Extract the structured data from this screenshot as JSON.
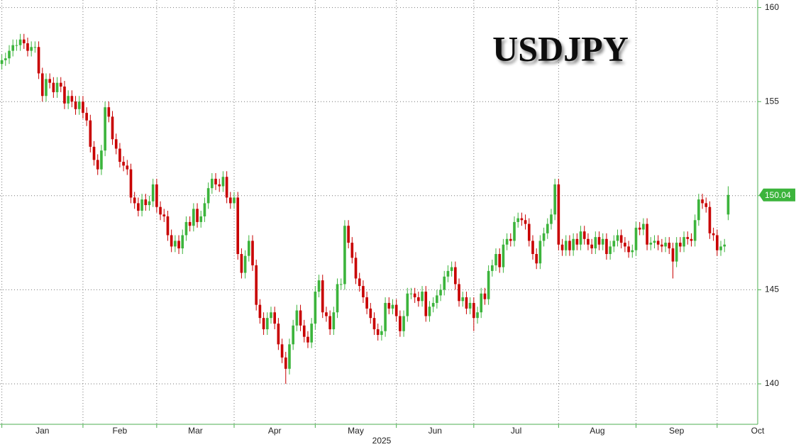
{
  "chart_data": {
    "type": "candlestick",
    "title": "USDJPY",
    "xlabel": "2025",
    "up_color": "#3cb43c",
    "down_color": "#c80000",
    "grid": true,
    "y_axis_side": "right",
    "ylim": [
      137.85,
      160.4
    ],
    "yticks": [
      140,
      145,
      150,
      155,
      160
    ],
    "xlim": [
      -0.5,
      205
    ],
    "xticks": [
      {
        "value": 0,
        "label": "Jan"
      },
      {
        "value": 22,
        "label": "Feb"
      },
      {
        "value": 42,
        "label": "Mar"
      },
      {
        "value": 63,
        "label": "Apr"
      },
      {
        "value": 85,
        "label": "May"
      },
      {
        "value": 107,
        "label": "Jun"
      },
      {
        "value": 128,
        "label": "Jul"
      },
      {
        "value": 151,
        "label": "Aug"
      },
      {
        "value": 172,
        "label": "Sep"
      },
      {
        "value": 194,
        "label": "Oct"
      }
    ],
    "open": [
      157.0,
      157.2,
      157.3,
      157.7,
      158.0,
      158.0,
      158.3,
      158.1,
      157.7,
      157.9,
      157.9,
      156.5,
      155.3,
      156.2,
      156.0,
      155.5,
      156.0,
      155.8,
      154.9,
      155.3,
      155.0,
      154.6,
      155.0,
      154.4,
      154.0,
      152.6,
      151.9,
      151.4,
      152.4,
      154.7,
      154.2,
      153.0,
      152.5,
      151.8,
      151.6,
      151.4,
      149.9,
      149.6,
      149.2,
      149.8,
      149.5,
      149.7,
      150.6,
      149.4,
      149.0,
      148.9,
      147.9,
      147.3,
      147.6,
      147.2,
      147.9,
      148.6,
      148.4,
      149.3,
      148.6,
      148.9,
      149.6,
      150.4,
      150.9,
      150.6,
      150.5,
      151.0,
      149.9,
      149.6,
      149.9,
      146.9,
      145.9,
      146.8,
      147.6,
      146.3,
      144.2,
      143.5,
      142.9,
      143.5,
      143.8,
      143.2,
      142.1,
      141.4,
      140.8,
      142.1,
      143.1,
      143.9,
      143.1,
      142.5,
      142.2,
      143.2,
      144.9,
      145.5,
      143.8,
      143.6,
      142.9,
      143.8,
      145.3,
      145.3,
      148.4,
      147.5,
      146.7,
      145.6,
      145.2,
      144.6,
      144.0,
      143.5,
      142.9,
      142.6,
      142.8,
      144.3,
      144.0,
      144.2,
      143.6,
      142.8,
      143.6,
      144.8,
      144.8,
      144.6,
      144.4,
      144.9,
      143.6,
      144.1,
      144.3,
      144.7,
      145.0,
      145.7,
      146.0,
      146.2,
      145.3,
      144.4,
      144.6,
      144.0,
      144.3,
      143.5,
      143.8,
      144.8,
      144.5,
      146.0,
      146.3,
      146.9,
      146.2,
      147.4,
      147.7,
      147.6,
      148.6,
      148.8,
      148.7,
      148.5,
      147.6,
      146.9,
      146.4,
      147.6,
      148.0,
      148.5,
      149.0,
      150.6,
      147.4,
      147.1,
      147.6,
      147.1,
      147.7,
      147.4,
      148.1,
      147.7,
      147.4,
      147.2,
      147.8,
      147.4,
      147.7,
      146.9,
      147.3,
      147.6,
      147.9,
      147.5,
      147.3,
      147.0,
      147.1,
      148.3,
      148.2,
      148.5,
      147.4,
      147.5,
      147.6,
      147.4,
      147.3,
      147.5,
      147.2,
      146.5,
      147.5,
      147.3,
      147.8,
      147.7,
      147.6,
      148.7,
      149.8,
      149.6,
      149.4,
      148.0,
      147.9,
      147.1,
      147.3,
      149.0
    ],
    "high": [
      157.5,
      157.6,
      158.0,
      158.3,
      158.3,
      158.6,
      158.6,
      158.4,
      158.2,
      158.2,
      158.2,
      156.8,
      156.5,
      156.5,
      156.3,
      156.3,
      156.3,
      156.1,
      155.6,
      155.6,
      155.3,
      155.3,
      155.3,
      154.7,
      154.3,
      152.9,
      152.2,
      152.7,
      155.0,
      155.0,
      154.5,
      153.3,
      152.8,
      152.1,
      151.9,
      151.7,
      150.2,
      149.9,
      150.1,
      150.1,
      150.0,
      150.9,
      150.9,
      149.7,
      149.3,
      149.2,
      148.2,
      147.9,
      147.9,
      148.2,
      148.9,
      148.9,
      149.6,
      149.6,
      149.2,
      149.9,
      150.7,
      151.2,
      151.2,
      150.9,
      151.3,
      151.3,
      150.2,
      150.2,
      150.2,
      147.2,
      147.1,
      147.9,
      147.9,
      146.6,
      144.5,
      143.8,
      143.8,
      144.1,
      144.1,
      143.5,
      142.4,
      141.7,
      142.4,
      143.4,
      144.2,
      144.2,
      143.4,
      142.8,
      143.5,
      145.2,
      145.8,
      145.8,
      144.1,
      143.9,
      144.1,
      145.6,
      145.6,
      148.7,
      148.7,
      147.8,
      147.0,
      145.9,
      145.5,
      144.9,
      144.3,
      143.8,
      143.2,
      143.1,
      144.6,
      144.6,
      144.5,
      144.5,
      143.9,
      143.9,
      145.1,
      145.1,
      145.1,
      144.9,
      145.2,
      145.2,
      144.4,
      144.6,
      145.0,
      145.3,
      146.0,
      146.3,
      146.5,
      146.5,
      145.6,
      144.9,
      144.9,
      144.6,
      144.6,
      144.1,
      145.1,
      145.1,
      146.3,
      146.6,
      147.2,
      147.2,
      147.7,
      148.0,
      148.0,
      148.9,
      149.1,
      149.1,
      149.0,
      148.8,
      147.9,
      147.2,
      147.9,
      148.3,
      148.8,
      149.3,
      150.9,
      150.9,
      147.7,
      147.9,
      147.9,
      148.0,
      148.0,
      148.4,
      148.4,
      148.0,
      147.7,
      148.1,
      148.1,
      148.0,
      148.0,
      147.6,
      147.9,
      148.2,
      148.2,
      147.8,
      147.6,
      147.4,
      148.6,
      148.6,
      148.8,
      148.8,
      147.8,
      147.9,
      147.9,
      147.7,
      147.8,
      147.8,
      147.5,
      147.8,
      147.8,
      148.1,
      148.1,
      148.0,
      149.0,
      150.1,
      150.1,
      149.9,
      149.7,
      148.3,
      148.2,
      147.6,
      147.7,
      150.5
    ],
    "low": [
      156.7,
      156.9,
      157.0,
      157.4,
      157.7,
      157.7,
      157.8,
      157.4,
      157.4,
      157.6,
      156.2,
      155.0,
      155.0,
      155.7,
      155.2,
      155.2,
      155.5,
      154.6,
      154.6,
      154.7,
      154.3,
      154.3,
      154.1,
      153.7,
      152.3,
      151.6,
      151.1,
      151.1,
      152.1,
      153.9,
      152.7,
      152.2,
      151.5,
      151.3,
      151.1,
      149.6,
      149.3,
      148.9,
      148.9,
      149.2,
      149.2,
      149.4,
      149.1,
      148.7,
      148.6,
      147.6,
      147.0,
      147.0,
      146.9,
      146.9,
      147.6,
      148.1,
      148.1,
      148.3,
      148.3,
      148.6,
      149.3,
      150.1,
      150.3,
      150.2,
      150.2,
      149.6,
      149.3,
      149.3,
      146.6,
      145.6,
      145.6,
      146.5,
      146.0,
      143.9,
      143.2,
      142.6,
      142.6,
      143.2,
      142.9,
      141.8,
      141.1,
      140.0,
      140.5,
      141.8,
      142.8,
      142.8,
      142.2,
      141.9,
      141.9,
      142.9,
      144.6,
      143.5,
      143.3,
      142.6,
      142.6,
      143.5,
      145.0,
      145.0,
      147.2,
      146.4,
      145.3,
      144.9,
      144.3,
      143.7,
      143.2,
      142.6,
      142.3,
      142.3,
      142.5,
      143.7,
      143.7,
      143.3,
      142.5,
      142.5,
      143.3,
      144.5,
      144.3,
      144.1,
      144.1,
      143.3,
      143.3,
      143.8,
      144.0,
      144.4,
      144.7,
      145.4,
      145.7,
      145.0,
      144.1,
      144.1,
      143.7,
      143.7,
      142.8,
      143.2,
      143.5,
      144.2,
      144.2,
      145.7,
      146.0,
      145.9,
      145.9,
      147.1,
      147.3,
      147.3,
      148.3,
      148.4,
      148.2,
      147.3,
      146.6,
      146.1,
      146.1,
      147.3,
      147.7,
      148.2,
      148.7,
      147.1,
      146.8,
      146.8,
      146.8,
      146.8,
      147.1,
      147.1,
      147.4,
      147.1,
      146.9,
      146.9,
      147.1,
      147.1,
      146.6,
      146.6,
      147.0,
      147.3,
      147.2,
      147.0,
      146.7,
      146.7,
      146.8,
      147.9,
      147.9,
      147.1,
      147.1,
      147.2,
      147.1,
      147.0,
      147.0,
      146.9,
      145.6,
      146.2,
      147.0,
      147.0,
      147.4,
      147.3,
      147.3,
      148.4,
      149.3,
      149.1,
      147.7,
      147.6,
      146.8,
      146.8,
      147.0,
      148.7
    ],
    "close": [
      157.2,
      157.3,
      157.7,
      158.0,
      158.0,
      158.3,
      158.1,
      157.7,
      157.9,
      157.9,
      156.5,
      155.3,
      156.2,
      156.0,
      155.5,
      156.0,
      155.8,
      154.9,
      155.3,
      155.0,
      154.6,
      155.0,
      154.4,
      154.0,
      152.6,
      151.9,
      151.4,
      152.4,
      154.7,
      154.2,
      153.0,
      152.5,
      151.8,
      151.6,
      151.4,
      149.9,
      149.6,
      149.2,
      149.8,
      149.5,
      149.7,
      150.6,
      149.4,
      149.0,
      148.9,
      147.9,
      147.3,
      147.6,
      147.2,
      147.9,
      148.6,
      148.4,
      149.3,
      148.6,
      148.9,
      149.6,
      150.4,
      150.9,
      150.6,
      150.5,
      151.0,
      149.9,
      149.6,
      149.9,
      146.9,
      145.9,
      146.8,
      147.6,
      146.3,
      144.2,
      143.5,
      142.9,
      143.5,
      143.8,
      143.2,
      142.1,
      141.4,
      140.8,
      142.1,
      143.1,
      143.9,
      143.1,
      142.5,
      142.2,
      143.2,
      144.9,
      145.5,
      143.8,
      143.6,
      142.9,
      143.8,
      145.3,
      145.3,
      148.4,
      147.5,
      146.7,
      145.6,
      145.2,
      144.6,
      144.0,
      143.5,
      142.9,
      142.6,
      142.8,
      144.3,
      144.0,
      144.2,
      143.6,
      142.8,
      143.6,
      144.8,
      144.8,
      144.6,
      144.4,
      144.9,
      143.6,
      144.1,
      144.3,
      144.7,
      145.0,
      145.7,
      146.0,
      146.2,
      145.3,
      144.4,
      144.6,
      144.0,
      144.3,
      143.5,
      143.8,
      144.8,
      144.5,
      146.0,
      146.3,
      146.9,
      146.2,
      147.4,
      147.7,
      147.6,
      148.6,
      148.8,
      148.7,
      148.5,
      147.6,
      146.9,
      146.4,
      147.6,
      148.0,
      148.5,
      149.0,
      150.6,
      147.4,
      147.1,
      147.6,
      147.1,
      147.7,
      147.4,
      148.1,
      147.7,
      147.4,
      147.2,
      147.8,
      147.4,
      147.7,
      146.9,
      147.3,
      147.6,
      147.9,
      147.5,
      147.3,
      147.0,
      147.1,
      148.3,
      148.2,
      148.5,
      147.4,
      147.5,
      147.6,
      147.4,
      147.3,
      147.5,
      147.2,
      146.5,
      147.5,
      147.3,
      147.8,
      147.7,
      147.6,
      148.7,
      149.8,
      149.6,
      149.4,
      148.0,
      147.9,
      147.1,
      147.3,
      147.4,
      150.04
    ]
  }
}
